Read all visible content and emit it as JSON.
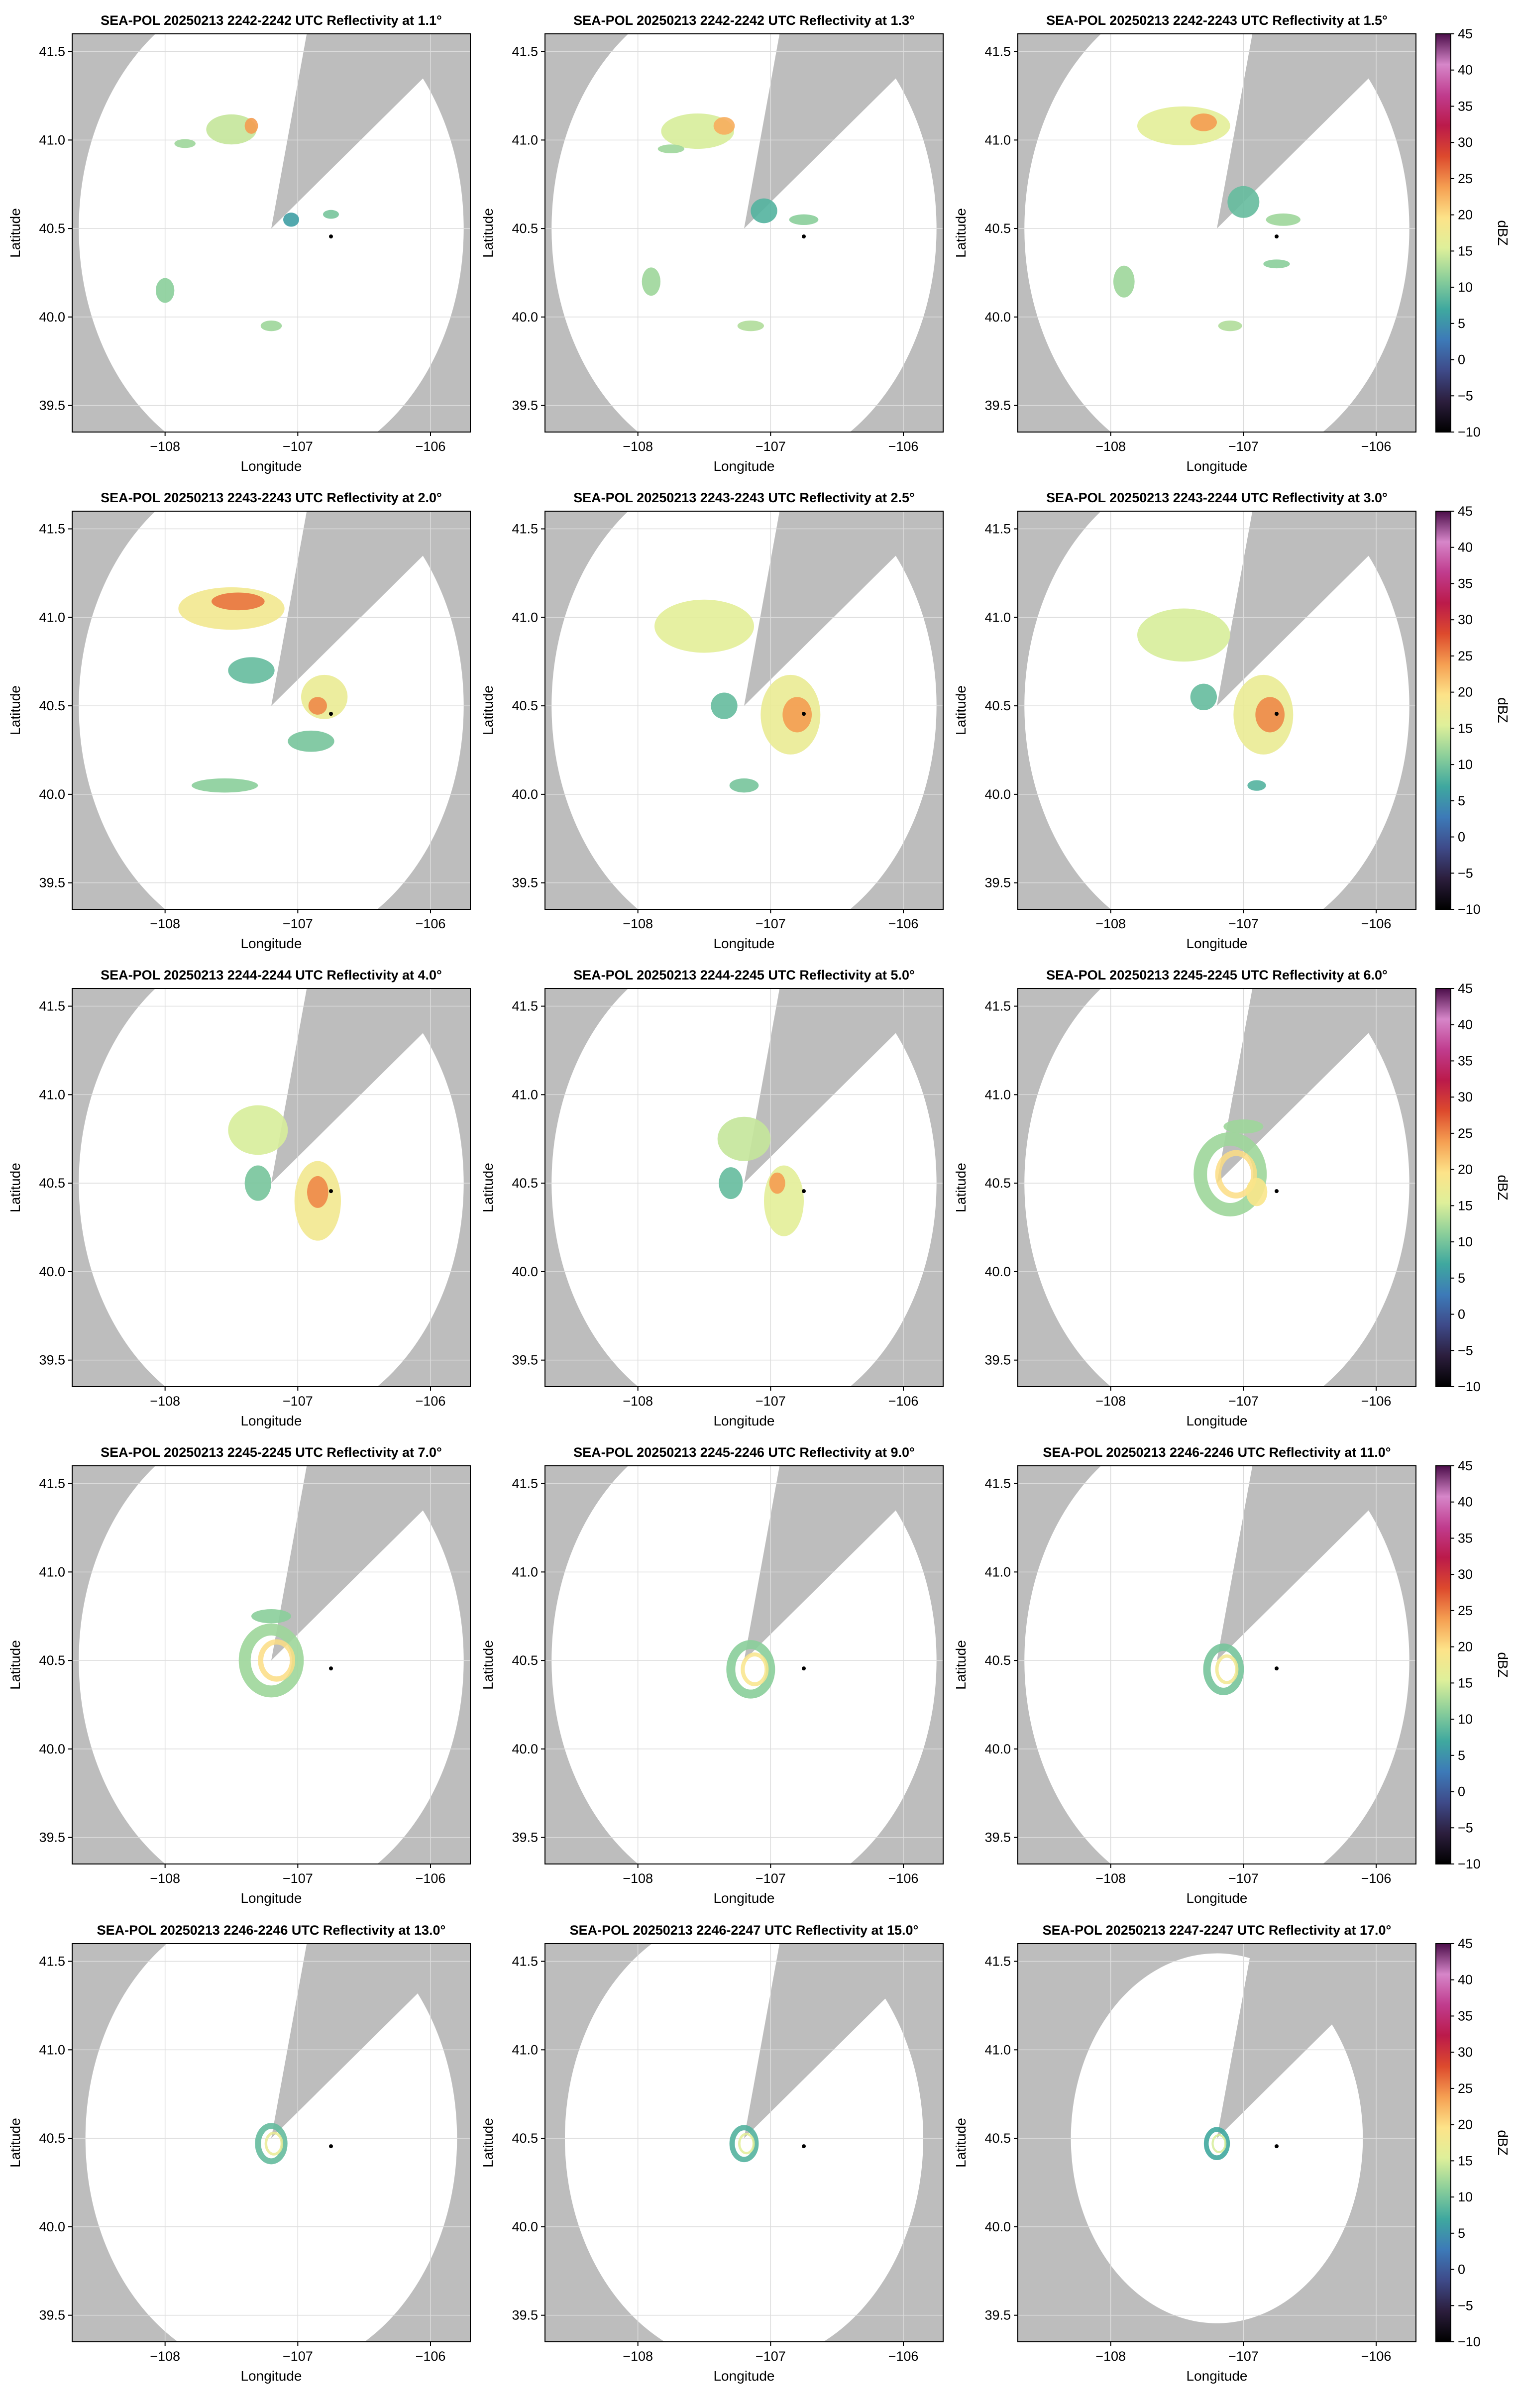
{
  "chart_data": {
    "type": "heatmap",
    "layout": {
      "rows": 5,
      "cols": 3
    },
    "shared": {
      "xlabel": "Longitude",
      "ylabel": "Latitude",
      "xlim": [
        -108.7,
        -105.7
      ],
      "ylim": [
        39.35,
        41.6
      ],
      "xticks": [
        -108,
        -107,
        -106
      ],
      "xtick_labels": [
        "−108",
        "−107",
        "−106"
      ],
      "yticks": [
        39.5,
        40.0,
        40.5,
        41.0,
        41.5
      ],
      "ytick_labels": [
        "39.5",
        "40.0",
        "40.5",
        "41.0",
        "41.5"
      ],
      "grid": true,
      "radar_site": {
        "lon": -107.2,
        "lat": 40.5
      },
      "marker": {
        "lon": -106.75,
        "lat": 40.455
      },
      "blocked_sector_deg": [
        13,
        52
      ],
      "background_color": "#bdbdbd",
      "domain_color": "#ffffff"
    },
    "colorbar": {
      "label": "dBZ",
      "range": [
        -10,
        45
      ],
      "ticks": [
        -10,
        -5,
        0,
        5,
        10,
        15,
        20,
        25,
        30,
        35,
        40,
        45
      ],
      "tick_labels": [
        "−10",
        "−5",
        "0",
        "5",
        "10",
        "15",
        "20",
        "25",
        "30",
        "35",
        "40",
        "45"
      ],
      "colors": [
        "#000000",
        "#2c1e3d",
        "#3e4a89",
        "#3d7ab8",
        "#3fa89f",
        "#8ccf9a",
        "#dff09a",
        "#fde389",
        "#f59f52",
        "#dd4a2d",
        "#bb1a4a",
        "#c03c8e",
        "#d686c9",
        "#4c0e4a"
      ],
      "panel_rows": [
        0,
        1,
        2,
        3,
        4
      ]
    },
    "panels": [
      {
        "title": "SEA-POL 20250213 2242-2242 UTC Reflectivity at 1.1°",
        "elevation_deg": 1.1,
        "range_deg": 1.45,
        "echoes": [
          {
            "lon": -107.5,
            "lat": 41.06,
            "w": 0.38,
            "h": 0.17,
            "dbz": 14
          },
          {
            "lon": -107.35,
            "lat": 41.08,
            "w": 0.1,
            "h": 0.09,
            "dbz": 24
          },
          {
            "lon": -107.85,
            "lat": 40.98,
            "w": 0.16,
            "h": 0.05,
            "dbz": 12
          },
          {
            "lon": -107.05,
            "lat": 40.55,
            "w": 0.12,
            "h": 0.08,
            "dbz": 6
          },
          {
            "lon": -108.0,
            "lat": 40.15,
            "w": 0.14,
            "h": 0.14,
            "dbz": 11
          },
          {
            "lon": -107.2,
            "lat": 39.95,
            "w": 0.16,
            "h": 0.06,
            "dbz": 12
          },
          {
            "lon": -106.75,
            "lat": 40.58,
            "w": 0.12,
            "h": 0.05,
            "dbz": 10
          }
        ]
      },
      {
        "title": "SEA-POL 20250213 2242-2242 UTC Reflectivity at 1.3°",
        "elevation_deg": 1.3,
        "range_deg": 1.45,
        "echoes": [
          {
            "lon": -107.55,
            "lat": 41.05,
            "w": 0.55,
            "h": 0.2,
            "dbz": 15
          },
          {
            "lon": -107.35,
            "lat": 41.08,
            "w": 0.16,
            "h": 0.1,
            "dbz": 23
          },
          {
            "lon": -107.75,
            "lat": 40.95,
            "w": 0.2,
            "h": 0.05,
            "dbz": 12
          },
          {
            "lon": -107.05,
            "lat": 40.6,
            "w": 0.2,
            "h": 0.14,
            "dbz": 8
          },
          {
            "lon": -106.75,
            "lat": 40.55,
            "w": 0.22,
            "h": 0.06,
            "dbz": 11
          },
          {
            "lon": -107.9,
            "lat": 40.2,
            "w": 0.14,
            "h": 0.16,
            "dbz": 12
          },
          {
            "lon": -107.15,
            "lat": 39.95,
            "w": 0.2,
            "h": 0.06,
            "dbz": 13
          }
        ]
      },
      {
        "title": "SEA-POL 20250213 2242-2243 UTC Reflectivity at 1.5°",
        "elevation_deg": 1.5,
        "range_deg": 1.45,
        "echoes": [
          {
            "lon": -107.45,
            "lat": 41.08,
            "w": 0.7,
            "h": 0.22,
            "dbz": 16
          },
          {
            "lon": -107.3,
            "lat": 41.1,
            "w": 0.2,
            "h": 0.1,
            "dbz": 24
          },
          {
            "lon": -107.0,
            "lat": 40.65,
            "w": 0.24,
            "h": 0.18,
            "dbz": 9
          },
          {
            "lon": -106.7,
            "lat": 40.55,
            "w": 0.26,
            "h": 0.07,
            "dbz": 12
          },
          {
            "lon": -106.75,
            "lat": 40.3,
            "w": 0.2,
            "h": 0.05,
            "dbz": 11
          },
          {
            "lon": -107.9,
            "lat": 40.2,
            "w": 0.16,
            "h": 0.18,
            "dbz": 12
          },
          {
            "lon": -107.1,
            "lat": 39.95,
            "w": 0.18,
            "h": 0.06,
            "dbz": 13
          }
        ]
      },
      {
        "title": "SEA-POL 20250213 2243-2243 UTC Reflectivity at 2.0°",
        "elevation_deg": 2.0,
        "range_deg": 1.45,
        "echoes": [
          {
            "lon": -107.5,
            "lat": 41.05,
            "w": 0.8,
            "h": 0.24,
            "dbz": 18
          },
          {
            "lon": -107.45,
            "lat": 41.09,
            "w": 0.4,
            "h": 0.1,
            "dbz": 26
          },
          {
            "lon": -107.35,
            "lat": 40.7,
            "w": 0.35,
            "h": 0.15,
            "dbz": 9
          },
          {
            "lon": -106.8,
            "lat": 40.55,
            "w": 0.35,
            "h": 0.25,
            "dbz": 17
          },
          {
            "lon": -106.85,
            "lat": 40.5,
            "w": 0.14,
            "h": 0.1,
            "dbz": 25
          },
          {
            "lon": -106.9,
            "lat": 40.3,
            "w": 0.35,
            "h": 0.12,
            "dbz": 10
          },
          {
            "lon": -107.55,
            "lat": 40.05,
            "w": 0.5,
            "h": 0.08,
            "dbz": 11
          }
        ]
      },
      {
        "title": "SEA-POL 20250213 2243-2243 UTC Reflectivity at 2.5°",
        "elevation_deg": 2.5,
        "range_deg": 1.45,
        "echoes": [
          {
            "lon": -107.5,
            "lat": 40.95,
            "w": 0.75,
            "h": 0.3,
            "dbz": 16
          },
          {
            "lon": -106.85,
            "lat": 40.45,
            "w": 0.45,
            "h": 0.45,
            "dbz": 17
          },
          {
            "lon": -106.8,
            "lat": 40.45,
            "w": 0.22,
            "h": 0.2,
            "dbz": 24
          },
          {
            "lon": -107.35,
            "lat": 40.5,
            "w": 0.2,
            "h": 0.15,
            "dbz": 9
          },
          {
            "lon": -107.2,
            "lat": 40.05,
            "w": 0.22,
            "h": 0.08,
            "dbz": 10
          }
        ]
      },
      {
        "title": "SEA-POL 20250213 2243-2244 UTC Reflectivity at 3.0°",
        "elevation_deg": 3.0,
        "range_deg": 1.45,
        "echoes": [
          {
            "lon": -107.45,
            "lat": 40.9,
            "w": 0.7,
            "h": 0.3,
            "dbz": 15
          },
          {
            "lon": -106.85,
            "lat": 40.45,
            "w": 0.45,
            "h": 0.45,
            "dbz": 17
          },
          {
            "lon": -106.8,
            "lat": 40.45,
            "w": 0.22,
            "h": 0.2,
            "dbz": 25
          },
          {
            "lon": -107.3,
            "lat": 40.55,
            "w": 0.2,
            "h": 0.15,
            "dbz": 9
          },
          {
            "lon": -106.9,
            "lat": 40.05,
            "w": 0.14,
            "h": 0.06,
            "dbz": 8
          }
        ]
      },
      {
        "title": "SEA-POL 20250213 2244-2244 UTC Reflectivity at 4.0°",
        "elevation_deg": 4.0,
        "range_deg": 1.45,
        "echoes": [
          {
            "lon": -107.3,
            "lat": 40.8,
            "w": 0.45,
            "h": 0.28,
            "dbz": 15
          },
          {
            "lon": -106.85,
            "lat": 40.4,
            "w": 0.35,
            "h": 0.45,
            "dbz": 18
          },
          {
            "lon": -106.85,
            "lat": 40.45,
            "w": 0.16,
            "h": 0.18,
            "dbz": 25
          },
          {
            "lon": -107.3,
            "lat": 40.5,
            "w": 0.2,
            "h": 0.2,
            "dbz": 10
          }
        ]
      },
      {
        "title": "SEA-POL 20250213 2244-2245 UTC Reflectivity at 5.0°",
        "elevation_deg": 5.0,
        "range_deg": 1.45,
        "echoes": [
          {
            "lon": -107.2,
            "lat": 40.75,
            "w": 0.4,
            "h": 0.25,
            "dbz": 14
          },
          {
            "lon": -106.9,
            "lat": 40.4,
            "w": 0.3,
            "h": 0.4,
            "dbz": 16
          },
          {
            "lon": -106.95,
            "lat": 40.5,
            "w": 0.12,
            "h": 0.12,
            "dbz": 24
          },
          {
            "lon": -107.3,
            "lat": 40.5,
            "w": 0.18,
            "h": 0.18,
            "dbz": 9
          }
        ]
      },
      {
        "title": "SEA-POL 20250213 2245-2245 UTC Reflectivity at 6.0°",
        "elevation_deg": 6.0,
        "range_deg": 1.45,
        "echoes": [
          {
            "lon": -107.1,
            "lat": 40.55,
            "w": 0.45,
            "h": 0.4,
            "dbz": 12,
            "ring": true
          },
          {
            "lon": -106.9,
            "lat": 40.45,
            "w": 0.16,
            "h": 0.16,
            "dbz": 19
          },
          {
            "lon": -107.0,
            "lat": 40.82,
            "w": 0.3,
            "h": 0.08,
            "dbz": 12
          }
        ]
      },
      {
        "title": "SEA-POL 20250213 2245-2245 UTC Reflectivity at 7.0°",
        "elevation_deg": 7.0,
        "range_deg": 1.45,
        "echoes": [
          {
            "lon": -107.2,
            "lat": 40.5,
            "w": 0.4,
            "h": 0.35,
            "dbz": 12,
            "ring": true
          },
          {
            "lon": -107.2,
            "lat": 40.75,
            "w": 0.3,
            "h": 0.08,
            "dbz": 11
          }
        ]
      },
      {
        "title": "SEA-POL 20250213 2245-2246 UTC Reflectivity at 9.0°",
        "elevation_deg": 9.0,
        "range_deg": 1.45,
        "echoes": [
          {
            "lon": -107.15,
            "lat": 40.45,
            "w": 0.3,
            "h": 0.28,
            "dbz": 11,
            "ring": true
          }
        ]
      },
      {
        "title": "SEA-POL 20250213 2246-2246 UTC Reflectivity at 11.0°",
        "elevation_deg": 11.0,
        "range_deg": 1.45,
        "echoes": [
          {
            "lon": -107.15,
            "lat": 40.45,
            "w": 0.25,
            "h": 0.25,
            "dbz": 10,
            "ring": true
          }
        ]
      },
      {
        "title": "SEA-POL 20250213 2246-2246 UTC Reflectivity at 13.0°",
        "elevation_deg": 13.0,
        "range_deg": 1.4,
        "echoes": [
          {
            "lon": -107.2,
            "lat": 40.47,
            "w": 0.2,
            "h": 0.2,
            "dbz": 9,
            "ring": true
          }
        ]
      },
      {
        "title": "SEA-POL 20250213 2246-2247 UTC Reflectivity at 15.0°",
        "elevation_deg": 15.0,
        "range_deg": 1.35,
        "echoes": [
          {
            "lon": -107.2,
            "lat": 40.47,
            "w": 0.18,
            "h": 0.18,
            "dbz": 8,
            "ring": true
          }
        ]
      },
      {
        "title": "SEA-POL 20250213 2247-2247 UTC Reflectivity at 17.0°",
        "elevation_deg": 17.0,
        "range_deg": 1.1,
        "echoes": [
          {
            "lon": -107.2,
            "lat": 40.47,
            "w": 0.16,
            "h": 0.16,
            "dbz": 7,
            "ring": true
          }
        ]
      }
    ]
  }
}
